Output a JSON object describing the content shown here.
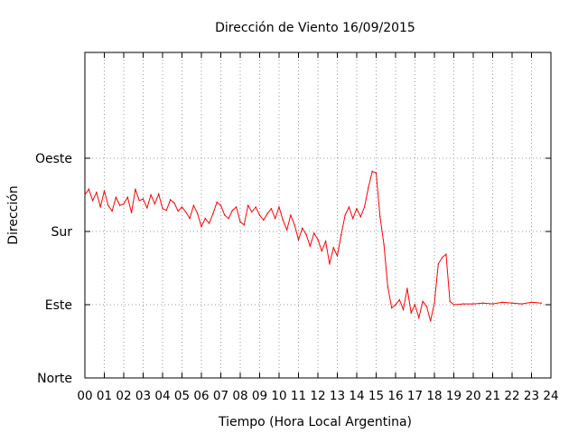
{
  "chart_data": {
    "type": "line",
    "title": "Dirección de Viento 16/09/2015",
    "xlabel": "Tiempo (Hora Local Argentina)",
    "ylabel": "Dirección",
    "xlim": [
      0,
      24
    ],
    "ylim": [
      0,
      400
    ],
    "x_ticks": [
      "00",
      "01",
      "02",
      "03",
      "04",
      "05",
      "06",
      "07",
      "08",
      "09",
      "10",
      "11",
      "12",
      "13",
      "14",
      "15",
      "16",
      "17",
      "18",
      "19",
      "20",
      "21",
      "22",
      "23",
      "24"
    ],
    "y_ticks": [
      {
        "value": 0,
        "label": "Norte"
      },
      {
        "value": 90,
        "label": "Este"
      },
      {
        "value": 180,
        "label": "Sur"
      },
      {
        "value": 270,
        "label": "Oeste"
      }
    ],
    "grid": true,
    "series": [
      {
        "color": "#ff0000",
        "x": [
          0.0,
          0.2,
          0.4,
          0.6,
          0.8,
          1.0,
          1.2,
          1.4,
          1.6,
          1.8,
          2.0,
          2.2,
          2.4,
          2.6,
          2.8,
          3.0,
          3.2,
          3.4,
          3.6,
          3.8,
          4.0,
          4.2,
          4.4,
          4.6,
          4.8,
          5.0,
          5.2,
          5.4,
          5.6,
          5.8,
          6.0,
          6.2,
          6.4,
          6.6,
          6.8,
          7.0,
          7.2,
          7.4,
          7.6,
          7.8,
          8.0,
          8.2,
          8.4,
          8.6,
          8.8,
          9.0,
          9.2,
          9.4,
          9.6,
          9.8,
          10.0,
          10.2,
          10.4,
          10.6,
          10.8,
          11.0,
          11.2,
          11.4,
          11.6,
          11.8,
          12.0,
          12.2,
          12.4,
          12.6,
          12.8,
          13.0,
          13.2,
          13.4,
          13.6,
          13.8,
          14.0,
          14.2,
          14.4,
          14.6,
          14.8,
          15.0,
          15.2,
          15.4,
          15.6,
          15.8,
          16.0,
          16.2,
          16.4,
          16.6,
          16.8,
          17.0,
          17.2,
          17.4,
          17.6,
          17.8,
          18.0,
          18.2,
          18.4,
          18.6,
          18.8,
          19.0,
          19.5,
          20.0,
          20.5,
          21.0,
          21.5,
          22.0,
          22.5,
          23.0,
          23.5
        ],
        "y": [
          225,
          232,
          218,
          228,
          210,
          230,
          212,
          205,
          222,
          212,
          214,
          222,
          203,
          232,
          218,
          220,
          209,
          225,
          214,
          226,
          208,
          206,
          219,
          215,
          205,
          210,
          204,
          196,
          212,
          202,
          186,
          196,
          190,
          202,
          216,
          212,
          200,
          196,
          206,
          210,
          192,
          188,
          212,
          204,
          210,
          200,
          194,
          202,
          208,
          196,
          210,
          194,
          182,
          200,
          188,
          170,
          184,
          176,
          162,
          178,
          170,
          156,
          168,
          140,
          160,
          150,
          176,
          200,
          210,
          196,
          208,
          198,
          210,
          234,
          254,
          252,
          198,
          164,
          112,
          86,
          90,
          96,
          84,
          110,
          80,
          90,
          74,
          94,
          88,
          70,
          92,
          140,
          148,
          152,
          94,
          90,
          91,
          91,
          92,
          91,
          93,
          92,
          91,
          93,
          92
        ]
      }
    ]
  }
}
